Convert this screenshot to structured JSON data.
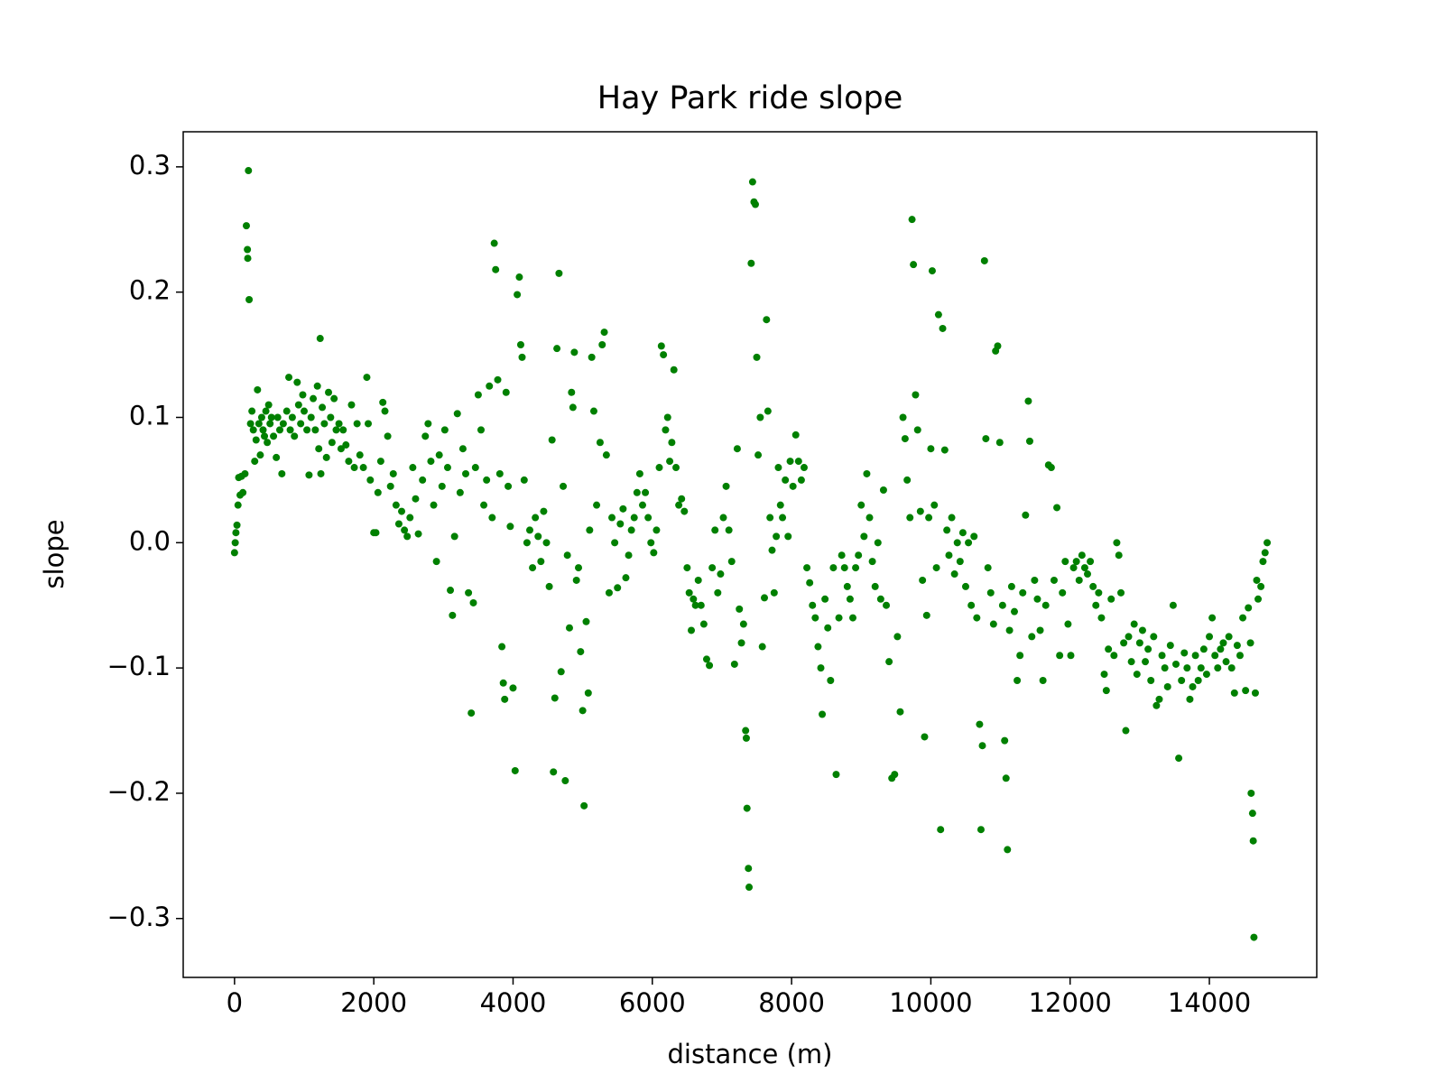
{
  "chart_data": {
    "type": "scatter",
    "title": "Hay Park ride slope",
    "xlabel": "distance (m)",
    "ylabel": "slope",
    "xlim": [
      -737,
      15542
    ],
    "ylim": [
      -0.347,
      0.328
    ],
    "xticks": [
      0,
      2000,
      4000,
      6000,
      8000,
      10000,
      12000,
      14000
    ],
    "yticks": [
      {
        "value": -0.3,
        "label": "−0.3"
      },
      {
        "value": -0.2,
        "label": "−0.2"
      },
      {
        "value": -0.1,
        "label": "−0.1"
      },
      {
        "value": 0,
        "label": "0.0"
      },
      0.1,
      0.2,
      0.3
    ],
    "x": [
      0,
      10,
      20,
      35,
      50,
      60,
      80,
      100,
      120,
      150,
      170,
      185,
      190,
      200,
      210,
      230,
      250,
      270,
      290,
      310,
      330,
      350,
      370,
      390,
      410,
      430,
      450,
      470,
      490,
      510,
      530,
      560,
      600,
      620,
      650,
      680,
      700,
      750,
      780,
      800,
      830,
      860,
      900,
      920,
      950,
      980,
      1000,
      1040,
      1070,
      1100,
      1130,
      1160,
      1190,
      1210,
      1230,
      1240,
      1260,
      1290,
      1320,
      1350,
      1380,
      1400,
      1430,
      1460,
      1500,
      1530,
      1560,
      1600,
      1640,
      1680,
      1720,
      1760,
      1800,
      1850,
      1900,
      1920,
      1950,
      2000,
      2030,
      2060,
      2100,
      2130,
      2160,
      2200,
      2240,
      2280,
      2320,
      2360,
      2400,
      2440,
      2480,
      2520,
      2560,
      2600,
      2640,
      2700,
      2740,
      2780,
      2820,
      2860,
      2900,
      2940,
      2980,
      3020,
      3060,
      3100,
      3130,
      3160,
      3200,
      3240,
      3280,
      3320,
      3360,
      3400,
      3430,
      3460,
      3500,
      3540,
      3580,
      3620,
      3660,
      3700,
      3730,
      3750,
      3780,
      3810,
      3840,
      3860,
      3880,
      3900,
      3930,
      3960,
      4000,
      4030,
      4060,
      4090,
      4110,
      4130,
      4160,
      4200,
      4240,
      4280,
      4320,
      4360,
      4400,
      4440,
      4480,
      4520,
      4560,
      4580,
      4600,
      4630,
      4660,
      4690,
      4720,
      4750,
      4780,
      4810,
      4840,
      4860,
      4880,
      4910,
      4940,
      4970,
      5000,
      5020,
      5050,
      5080,
      5100,
      5130,
      5160,
      5200,
      5250,
      5280,
      5310,
      5340,
      5380,
      5420,
      5460,
      5500,
      5540,
      5580,
      5620,
      5660,
      5700,
      5740,
      5780,
      5820,
      5860,
      5900,
      5940,
      5980,
      6020,
      6060,
      6100,
      6130,
      6160,
      6190,
      6220,
      6250,
      6280,
      6310,
      6340,
      6380,
      6420,
      6460,
      6500,
      6530,
      6560,
      6590,
      6620,
      6660,
      6700,
      6740,
      6780,
      6820,
      6860,
      6900,
      6940,
      6980,
      7020,
      7060,
      7100,
      7140,
      7180,
      7220,
      7250,
      7280,
      7310,
      7340,
      7350,
      7360,
      7380,
      7390,
      7420,
      7440,
      7460,
      7480,
      7500,
      7520,
      7550,
      7580,
      7610,
      7640,
      7660,
      7690,
      7720,
      7750,
      7780,
      7810,
      7840,
      7870,
      7910,
      7950,
      7980,
      8020,
      8060,
      8100,
      8140,
      8180,
      8220,
      8260,
      8300,
      8340,
      8380,
      8420,
      8440,
      8480,
      8520,
      8560,
      8600,
      8640,
      8680,
      8720,
      8760,
      8800,
      8840,
      8880,
      8920,
      8960,
      9000,
      9040,
      9080,
      9120,
      9160,
      9200,
      9240,
      9280,
      9320,
      9360,
      9400,
      9440,
      9480,
      9520,
      9560,
      9600,
      9630,
      9660,
      9700,
      9730,
      9750,
      9780,
      9810,
      9850,
      9880,
      9910,
      9940,
      9970,
      10000,
      10020,
      10050,
      10080,
      10110,
      10140,
      10170,
      10200,
      10230,
      10260,
      10300,
      10340,
      10380,
      10420,
      10460,
      10500,
      10540,
      10580,
      10620,
      10660,
      10700,
      10720,
      10740,
      10770,
      10790,
      10820,
      10860,
      10900,
      10930,
      10960,
      10990,
      11030,
      11060,
      11080,
      11100,
      11130,
      11160,
      11200,
      11240,
      11280,
      11320,
      11360,
      11400,
      11420,
      11450,
      11490,
      11530,
      11570,
      11610,
      11650,
      11690,
      11730,
      11770,
      11810,
      11850,
      11890,
      11930,
      11970,
      12010,
      12050,
      12090,
      12130,
      12170,
      12210,
      12250,
      12290,
      12330,
      12370,
      12410,
      12450,
      12490,
      12520,
      12550,
      12590,
      12630,
      12670,
      12700,
      12730,
      12770,
      12800,
      12840,
      12880,
      12920,
      12960,
      13000,
      13040,
      13080,
      13120,
      13160,
      13200,
      13240,
      13280,
      13320,
      13360,
      13400,
      13440,
      13480,
      13520,
      13560,
      13600,
      13640,
      13680,
      13720,
      13760,
      13800,
      13840,
      13880,
      13920,
      13960,
      14000,
      14040,
      14080,
      14120,
      14160,
      14200,
      14240,
      14280,
      14320,
      14360,
      14400,
      14440,
      14480,
      14520,
      14560,
      14590,
      14600,
      14620,
      14630,
      14640,
      14660,
      14680,
      14700,
      14740,
      14770,
      14800,
      14830
    ],
    "series": [
      {
        "color": "#008000",
        "values": [
          -0.008,
          0.0,
          0.008,
          0.014,
          0.03,
          0.052,
          0.038,
          0.053,
          0.04,
          0.055,
          0.253,
          0.234,
          0.227,
          0.297,
          0.194,
          0.095,
          0.105,
          0.09,
          0.065,
          0.082,
          0.122,
          0.095,
          0.07,
          0.1,
          0.09,
          0.085,
          0.105,
          0.08,
          0.11,
          0.095,
          0.1,
          0.085,
          0.068,
          0.1,
          0.09,
          0.055,
          0.095,
          0.105,
          0.132,
          0.09,
          0.1,
          0.085,
          0.128,
          0.11,
          0.095,
          0.118,
          0.105,
          0.09,
          0.054,
          0.1,
          0.115,
          0.09,
          0.125,
          0.075,
          0.163,
          0.055,
          0.108,
          0.095,
          0.068,
          0.12,
          0.1,
          0.08,
          0.115,
          0.09,
          0.095,
          0.075,
          0.09,
          0.078,
          0.065,
          0.11,
          0.06,
          0.095,
          0.07,
          0.06,
          0.132,
          0.095,
          0.05,
          0.008,
          0.008,
          0.04,
          0.065,
          0.112,
          0.105,
          0.085,
          0.045,
          0.055,
          0.03,
          0.015,
          0.025,
          0.01,
          0.005,
          0.02,
          0.06,
          0.035,
          0.007,
          0.05,
          0.085,
          0.095,
          0.065,
          0.03,
          -0.015,
          0.07,
          0.045,
          0.09,
          0.06,
          -0.038,
          -0.058,
          0.005,
          0.103,
          0.04,
          0.075,
          0.055,
          -0.04,
          -0.136,
          -0.048,
          0.06,
          0.118,
          0.09,
          0.03,
          0.05,
          0.125,
          0.02,
          0.239,
          0.218,
          0.13,
          0.055,
          -0.083,
          -0.112,
          -0.125,
          0.12,
          0.045,
          0.013,
          -0.116,
          -0.182,
          0.198,
          0.212,
          0.158,
          0.148,
          0.05,
          0.0,
          0.01,
          -0.02,
          0.02,
          0.005,
          -0.015,
          0.025,
          0.0,
          -0.035,
          0.082,
          -0.183,
          -0.124,
          0.155,
          0.215,
          -0.103,
          0.045,
          -0.19,
          -0.01,
          -0.068,
          0.12,
          0.108,
          0.152,
          -0.03,
          -0.02,
          -0.087,
          -0.134,
          -0.21,
          -0.063,
          -0.12,
          0.01,
          0.148,
          0.105,
          0.03,
          0.08,
          0.158,
          0.168,
          0.07,
          -0.04,
          0.02,
          0.0,
          -0.036,
          0.015,
          0.027,
          -0.028,
          -0.01,
          0.01,
          0.02,
          0.04,
          0.055,
          0.03,
          0.04,
          0.02,
          0.0,
          -0.008,
          0.01,
          0.06,
          0.157,
          0.15,
          0.09,
          0.1,
          0.065,
          0.08,
          0.138,
          0.06,
          0.03,
          0.035,
          0.025,
          -0.02,
          -0.04,
          -0.07,
          -0.045,
          -0.05,
          -0.03,
          -0.05,
          -0.065,
          -0.093,
          -0.098,
          -0.02,
          0.01,
          -0.04,
          -0.025,
          0.02,
          0.045,
          0.01,
          -0.015,
          -0.097,
          0.075,
          -0.053,
          -0.08,
          -0.065,
          -0.15,
          -0.156,
          -0.212,
          -0.26,
          -0.275,
          0.223,
          0.288,
          0.272,
          0.27,
          0.148,
          0.07,
          0.1,
          -0.083,
          -0.044,
          0.178,
          0.105,
          0.02,
          -0.006,
          -0.04,
          0.005,
          0.06,
          0.03,
          0.02,
          0.05,
          0.005,
          0.065,
          0.045,
          0.086,
          0.065,
          0.05,
          0.06,
          -0.02,
          -0.032,
          -0.05,
          -0.06,
          -0.083,
          -0.1,
          -0.137,
          -0.045,
          -0.068,
          -0.11,
          -0.02,
          -0.185,
          -0.06,
          -0.01,
          -0.02,
          -0.035,
          -0.045,
          -0.06,
          -0.02,
          -0.01,
          0.03,
          0.005,
          0.055,
          0.02,
          -0.015,
          -0.035,
          0.0,
          -0.045,
          0.042,
          -0.05,
          -0.095,
          -0.188,
          -0.185,
          -0.075,
          -0.135,
          0.1,
          0.083,
          0.05,
          0.02,
          0.258,
          0.222,
          0.118,
          0.09,
          0.025,
          -0.03,
          -0.155,
          -0.058,
          0.02,
          0.075,
          0.217,
          0.03,
          -0.02,
          0.182,
          -0.229,
          0.171,
          0.074,
          0.01,
          -0.01,
          0.02,
          -0.025,
          0.0,
          -0.015,
          0.008,
          -0.035,
          0.0,
          -0.05,
          0.005,
          -0.06,
          -0.145,
          -0.229,
          -0.162,
          0.225,
          0.083,
          -0.02,
          -0.04,
          -0.065,
          0.153,
          0.157,
          0.08,
          -0.05,
          -0.158,
          -0.188,
          -0.245,
          -0.07,
          -0.035,
          -0.055,
          -0.11,
          -0.09,
          -0.04,
          0.022,
          0.113,
          0.081,
          -0.075,
          -0.03,
          -0.045,
          -0.07,
          -0.11,
          -0.05,
          0.062,
          0.06,
          -0.03,
          0.028,
          -0.09,
          -0.04,
          -0.015,
          -0.065,
          -0.09,
          -0.02,
          -0.015,
          -0.03,
          -0.01,
          -0.02,
          -0.025,
          -0.015,
          -0.035,
          -0.05,
          -0.04,
          -0.06,
          -0.105,
          -0.118,
          -0.085,
          -0.045,
          -0.09,
          0.0,
          -0.01,
          -0.04,
          -0.08,
          -0.15,
          -0.075,
          -0.095,
          -0.065,
          -0.105,
          -0.08,
          -0.07,
          -0.095,
          -0.085,
          -0.11,
          -0.075,
          -0.13,
          -0.125,
          -0.09,
          -0.1,
          -0.115,
          -0.082,
          -0.05,
          -0.097,
          -0.172,
          -0.11,
          -0.088,
          -0.1,
          -0.125,
          -0.115,
          -0.09,
          -0.11,
          -0.1,
          -0.085,
          -0.105,
          -0.075,
          -0.06,
          -0.09,
          -0.1,
          -0.085,
          -0.08,
          -0.095,
          -0.075,
          -0.1,
          -0.12,
          -0.082,
          -0.09,
          -0.06,
          -0.118,
          -0.052,
          -0.08,
          -0.2,
          -0.216,
          -0.238,
          -0.315,
          -0.12,
          -0.03,
          -0.045,
          -0.035,
          -0.015,
          -0.008,
          0.0
        ]
      }
    ]
  }
}
